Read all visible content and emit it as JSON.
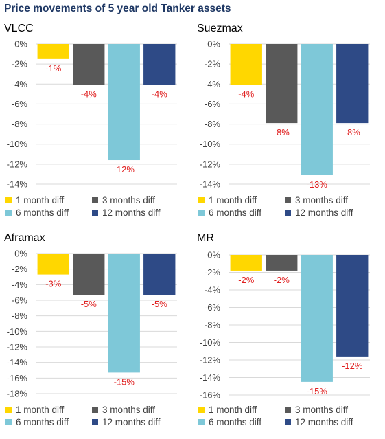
{
  "title": "Price movements of 5 year old Tanker assets",
  "colors": {
    "series": [
      "#ffd700",
      "#595959",
      "#7ec8d8",
      "#2e4a86"
    ],
    "label": "#e02020",
    "title": "#1f3864",
    "grid": "#d9d9d9"
  },
  "chart_data": [
    {
      "type": "bar",
      "title": "VLCC",
      "categories": [
        "1 month diff",
        "3 months diff",
        "6 months diff",
        "12 months diff"
      ],
      "values": [
        -1.5,
        -4.1,
        -11.6,
        -4.1
      ],
      "data_labels": [
        "-1%",
        "-4%",
        "-12%",
        "-4%"
      ],
      "ylim": [
        -14,
        0
      ],
      "yticks": [
        "0%",
        "-2%",
        "-4%",
        "-6%",
        "-8%",
        "-10%",
        "-12%",
        "-14%"
      ],
      "legend": [
        "1 month diff",
        "3 months diff",
        "6 months diff",
        "12 months diff"
      ],
      "grid": true,
      "legend_position": "bottom"
    },
    {
      "type": "bar",
      "title": "Suezmax",
      "categories": [
        "1 month diff",
        "3 months diff",
        "6 months diff",
        "12 months diff"
      ],
      "values": [
        -4.1,
        -7.9,
        -13.1,
        -7.9
      ],
      "data_labels": [
        "-4%",
        "-8%",
        "-13%",
        "-8%"
      ],
      "ylim": [
        -14,
        0
      ],
      "yticks": [
        "0%",
        "-2%",
        "-4%",
        "-6%",
        "-8%",
        "-10%",
        "-12%",
        "-14%"
      ],
      "legend": [
        "1 month diff",
        "3 months diff",
        "6 months diff",
        "12 months diff"
      ],
      "grid": true,
      "legend_position": "bottom"
    },
    {
      "type": "bar",
      "title": "Aframax",
      "categories": [
        "1 month diff",
        "3 months diff",
        "6 months diff",
        "12 months diff"
      ],
      "values": [
        -2.7,
        -5.3,
        -15.3,
        -5.3
      ],
      "data_labels": [
        "-3%",
        "-5%",
        "-15%",
        "-5%"
      ],
      "ylim": [
        -18,
        0
      ],
      "yticks": [
        "0%",
        "-2%",
        "-4%",
        "-6%",
        "-8%",
        "-10%",
        "-12%",
        "-14%",
        "-16%",
        "-18%"
      ],
      "legend": [
        "1 month diff",
        "3 months diff",
        "6 months diff",
        "12 months diff"
      ],
      "grid": true,
      "legend_position": "bottom"
    },
    {
      "type": "bar",
      "title": "MR",
      "categories": [
        "1 month diff",
        "3 months diff",
        "6 months diff",
        "12 months diff"
      ],
      "values": [
        -1.8,
        -1.8,
        -14.5,
        -11.6
      ],
      "data_labels": [
        "-2%",
        "-2%",
        "-15%",
        "-12%"
      ],
      "ylim": [
        -16,
        0
      ],
      "yticks": [
        "0%",
        "-2%",
        "-4%",
        "-6%",
        "-8%",
        "-10%",
        "-12%",
        "-14%",
        "-16%"
      ],
      "legend": [
        "1 month diff",
        "3 months diff",
        "6 months diff",
        "12 months diff"
      ],
      "grid": true,
      "legend_position": "bottom"
    }
  ]
}
